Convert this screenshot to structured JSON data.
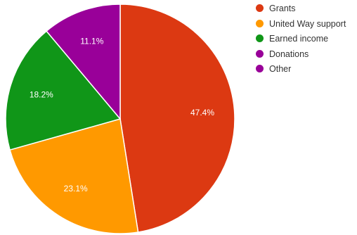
{
  "chart_data": {
    "type": "pie",
    "labels": [
      "Grants",
      "United Way support",
      "Earned income",
      "Donations",
      "Other"
    ],
    "values": [
      47.4,
      23.1,
      18.2,
      0,
      11.1
    ],
    "value_labels": [
      "47.4%",
      "23.1%",
      "18.2%",
      "",
      "11.1%"
    ],
    "colors": [
      "#dc3912",
      "#ff9900",
      "#109618",
      "#990099",
      "#990099"
    ],
    "start_angle_deg": 0,
    "direction": "clockwise",
    "legend_position": "right"
  }
}
